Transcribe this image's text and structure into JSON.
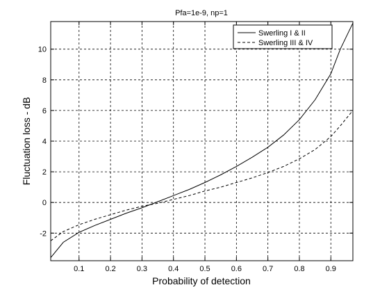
{
  "chart_data": {
    "type": "line",
    "title": "Pfa=1e-9, np=1",
    "xlabel": "Probability of detection",
    "ylabel": "Fluctuation loss - dB",
    "xlim": [
      0.01,
      0.97
    ],
    "ylim": [
      -3.8,
      11.8
    ],
    "xticks": [
      0.1,
      0.2,
      0.3,
      0.4,
      0.5,
      0.6,
      0.7,
      0.8,
      0.9
    ],
    "xtick_labels": [
      "0.1",
      "0.2",
      "0.3",
      "0.4",
      "0.5",
      "0.6",
      "0.7",
      "0.8",
      "0.9"
    ],
    "yticks": [
      -2,
      0,
      2,
      4,
      6,
      8,
      10
    ],
    "ytick_labels": [
      "-2",
      "0",
      "2",
      "4",
      "6",
      "8",
      "10"
    ],
    "grid": true,
    "legend_position": "top-right",
    "series": [
      {
        "name": "Swerling I & II",
        "style": "solid",
        "color": "#000000",
        "x": [
          0.01,
          0.05,
          0.1,
          0.15,
          0.2,
          0.25,
          0.3,
          0.35,
          0.4,
          0.45,
          0.5,
          0.55,
          0.6,
          0.65,
          0.7,
          0.75,
          0.8,
          0.85,
          0.9,
          0.93,
          0.97
        ],
        "y": [
          -3.6,
          -2.6,
          -1.95,
          -1.5,
          -1.1,
          -0.7,
          -0.35,
          0.05,
          0.45,
          0.85,
          1.3,
          1.8,
          2.35,
          2.95,
          3.6,
          4.4,
          5.4,
          6.7,
          8.4,
          10.0,
          11.7
        ]
      },
      {
        "name": "Swerling III & IV",
        "style": "dashed",
        "color": "#000000",
        "x": [
          0.01,
          0.05,
          0.1,
          0.15,
          0.2,
          0.25,
          0.3,
          0.35,
          0.4,
          0.45,
          0.5,
          0.55,
          0.6,
          0.65,
          0.7,
          0.75,
          0.8,
          0.85,
          0.9,
          0.93,
          0.97
        ],
        "y": [
          -2.5,
          -1.9,
          -1.45,
          -1.1,
          -0.8,
          -0.5,
          -0.25,
          -0.05,
          0.2,
          0.45,
          0.75,
          1.0,
          1.3,
          1.6,
          1.95,
          2.35,
          2.85,
          3.45,
          4.3,
          5.0,
          6.0
        ]
      }
    ]
  }
}
